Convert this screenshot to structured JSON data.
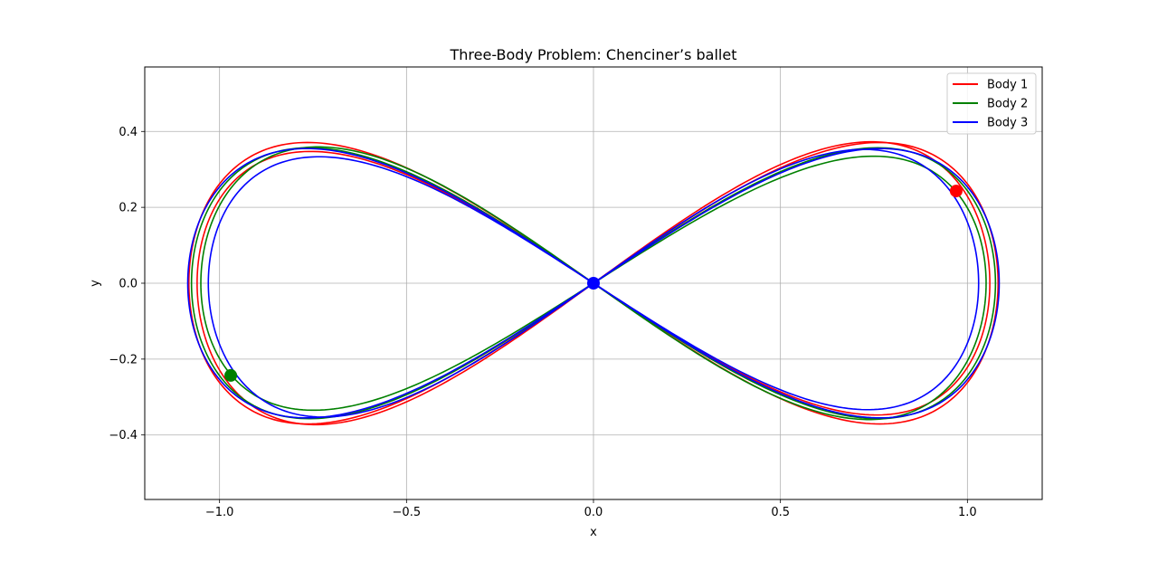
{
  "chart_data": {
    "type": "line",
    "title": "Three-Body Problem: Chenciner’s ballet",
    "xlabel": "x",
    "ylabel": "y",
    "xlim": [
      -1.2,
      1.2
    ],
    "ylim": [
      -0.57,
      0.57
    ],
    "xticks": [
      -1.0,
      -0.5,
      0.0,
      0.5,
      1.0
    ],
    "xtick_labels": [
      "−1.0",
      "−0.5",
      "0.0",
      "0.5",
      "1.0"
    ],
    "yticks": [
      -0.4,
      -0.2,
      0.0,
      0.2,
      0.4
    ],
    "ytick_labels": [
      "−0.4",
      "−0.2",
      "0.0",
      "0.2",
      "0.4"
    ],
    "grid": true,
    "legend_position": "top-right",
    "series": [
      {
        "name": "Body 1",
        "color": "#ff0000",
        "loops": [
          {
            "ax": 1.082,
            "by": 0.371,
            "phase": 0.0
          },
          {
            "ax": 1.06,
            "by": 0.36,
            "phase": 0.05
          }
        ],
        "marker": {
          "x": 0.97,
          "y": 0.243
        }
      },
      {
        "name": "Body 2",
        "color": "#008000",
        "loops": [
          {
            "ax": 1.075,
            "by": 0.357,
            "phase": 0.0
          },
          {
            "ax": 1.05,
            "by": 0.347,
            "phase": -0.05
          }
        ],
        "marker": {
          "x": -0.97,
          "y": -0.243
        }
      },
      {
        "name": "Body 3",
        "color": "#0000ff",
        "loops": [
          {
            "ax": 1.085,
            "by": 0.355,
            "phase": 0.0
          },
          {
            "ax": 1.03,
            "by": 0.343,
            "phase": 0.04
          }
        ],
        "marker": {
          "x": 0.0,
          "y": 0.0
        }
      }
    ]
  }
}
